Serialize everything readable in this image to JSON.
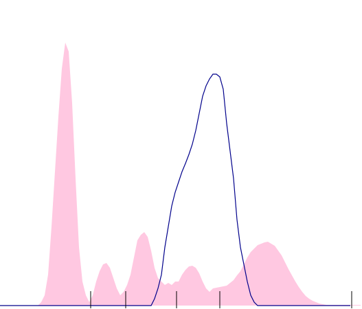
{
  "chart_data": {
    "type": "area",
    "x": [
      0,
      5,
      10,
      15,
      20,
      25,
      30,
      35,
      40,
      45,
      50,
      55,
      60,
      65,
      70,
      75,
      80,
      85,
      90,
      95,
      100,
      105,
      110,
      115,
      120,
      125,
      130,
      135,
      140,
      145,
      150,
      155,
      160,
      165,
      170,
      175,
      180,
      185,
      190,
      195,
      200,
      205,
      210,
      215,
      220,
      225,
      230,
      235,
      240,
      245,
      250,
      255,
      260,
      265,
      270,
      275,
      280,
      285,
      290,
      295,
      300,
      305,
      310,
      315,
      320,
      325,
      330,
      335,
      340,
      345,
      350,
      355,
      360,
      365,
      370,
      375,
      380,
      385,
      390,
      395,
      400,
      405,
      410,
      415,
      420,
      425,
      430,
      435,
      440,
      445,
      450,
      455,
      460,
      465,
      470,
      475,
      480,
      485,
      490,
      495,
      500,
      505,
      510,
      515,
      520,
      525
    ],
    "series": [
      {
        "type": "area",
        "color": "#ffc8e1",
        "values": [
          0,
          0,
          0,
          0,
          0,
          0,
          0,
          0,
          0,
          0,
          0,
          0,
          5,
          15,
          45,
          115,
          195,
          275,
          345,
          383,
          370,
          295,
          185,
          85,
          35,
          15,
          5,
          15,
          35,
          50,
          60,
          62,
          55,
          40,
          25,
          15,
          20,
          30,
          45,
          70,
          95,
          103,
          107,
          100,
          80,
          55,
          40,
          35,
          30,
          33,
          30,
          35,
          35,
          45,
          52,
          57,
          58,
          55,
          47,
          35,
          25,
          20,
          25,
          26,
          27,
          28,
          29,
          33,
          37,
          44,
          50,
          60,
          70,
          78,
          83,
          88,
          90,
          92,
          93,
          90,
          87,
          80,
          73,
          63,
          53,
          44,
          35,
          27,
          20,
          14,
          10,
          7,
          5,
          3,
          2,
          1,
          1,
          1,
          1,
          1,
          1,
          1,
          1,
          1,
          1,
          1
        ]
      },
      {
        "type": "line",
        "color": "#00008b",
        "values": [
          0,
          0,
          0,
          0,
          0,
          0,
          0,
          0,
          0,
          0,
          0,
          0,
          0,
          0,
          0,
          0,
          0,
          0,
          0,
          0,
          0,
          0,
          0,
          0,
          0,
          0,
          0,
          0,
          0,
          0,
          0,
          0,
          0,
          0,
          0,
          0,
          0,
          0,
          0,
          0,
          0,
          0,
          0,
          0,
          0,
          10,
          25,
          45,
          85,
          115,
          145,
          165,
          180,
          195,
          207,
          220,
          235,
          255,
          280,
          305,
          320,
          330,
          337,
          337,
          333,
          315,
          265,
          225,
          185,
          125,
          85,
          60,
          35,
          15,
          5,
          0,
          0,
          0,
          0,
          0,
          0,
          0,
          0,
          0,
          0,
          0,
          0,
          0,
          0,
          0,
          0,
          0,
          0,
          0,
          0,
          0,
          0,
          0,
          0,
          0,
          0,
          0,
          0,
          null,
          null,
          null
        ]
      }
    ],
    "xlim": [
      0,
      527
    ],
    "ylim": [
      0,
      445
    ],
    "xticks": [
      132,
      183,
      257,
      320,
      512
    ]
  }
}
